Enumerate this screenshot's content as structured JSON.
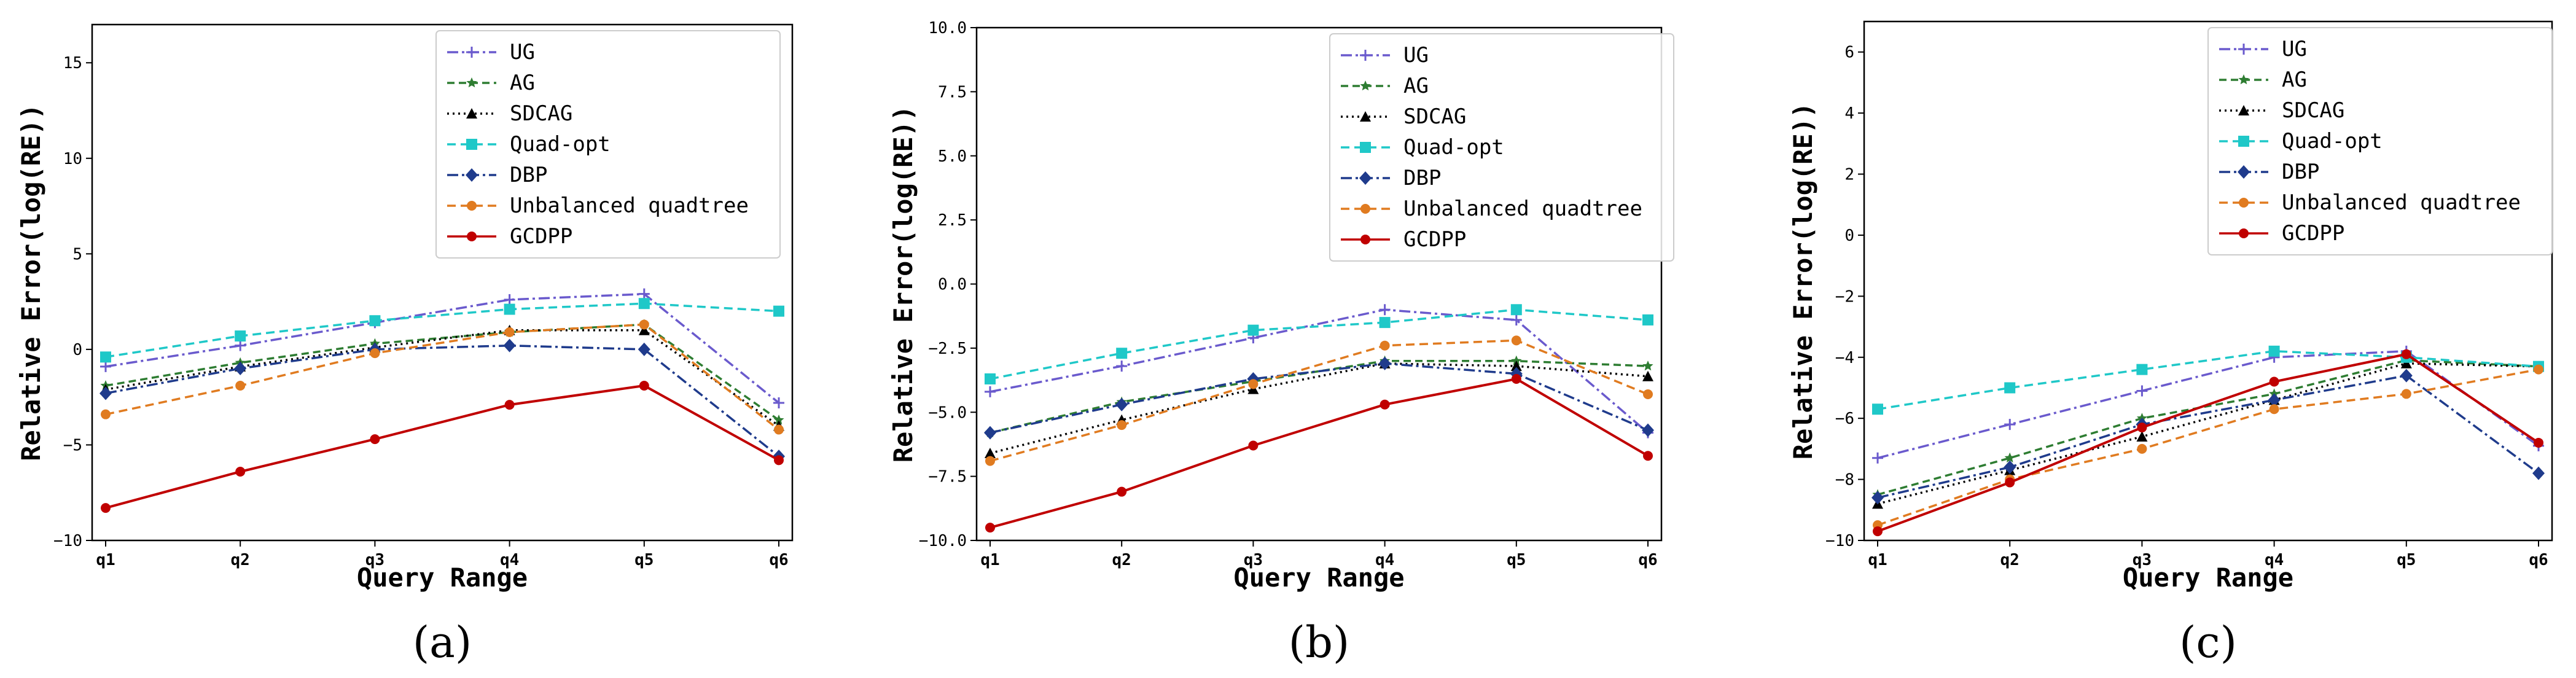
{
  "chart_data": [
    {
      "type": "line",
      "panel_label": "(a)",
      "xlabel": "Query Range",
      "ylabel": "Relative Error(log(RE))",
      "categories": [
        "q1",
        "q2",
        "q3",
        "q4",
        "q5",
        "q6"
      ],
      "ylim": [
        -10,
        17
      ],
      "yticks": [
        -10,
        -5,
        0,
        5,
        10,
        15
      ],
      "ytick_labels": [
        "−10",
        "−5",
        "0",
        "5",
        "10",
        "15"
      ],
      "grid": false,
      "legend": "top-right",
      "series": [
        {
          "name": "UG",
          "values": [
            -0.9,
            0.2,
            1.4,
            2.6,
            2.9,
            -2.8
          ]
        },
        {
          "name": "AG",
          "values": [
            -1.9,
            -0.7,
            0.3,
            0.9,
            1.3,
            -3.7
          ]
        },
        {
          "name": "SDCAG",
          "values": [
            -2.1,
            -0.9,
            0.1,
            1.0,
            1.0,
            -4.0
          ]
        },
        {
          "name": "Quad-opt",
          "values": [
            -0.4,
            0.7,
            1.5,
            2.1,
            2.4,
            2.0
          ]
        },
        {
          "name": "DBP",
          "values": [
            -2.3,
            -1.0,
            0.0,
            0.2,
            0.0,
            -5.6
          ]
        },
        {
          "name": "Unbalanced quadtree",
          "values": [
            -3.4,
            -1.9,
            -0.2,
            0.9,
            1.3,
            -4.2
          ]
        },
        {
          "name": "GCDPP",
          "values": [
            -8.3,
            -6.4,
            -4.7,
            -2.9,
            -1.9,
            -5.8
          ]
        }
      ]
    },
    {
      "type": "line",
      "panel_label": "(b)",
      "xlabel": "Query Range",
      "ylabel": "Relative Error(log(RE))",
      "categories": [
        "q1",
        "q2",
        "q3",
        "q4",
        "q5",
        "q6"
      ],
      "ylim": [
        -10,
        10
      ],
      "yticks": [
        -10,
        -7.5,
        -5,
        -2.5,
        0,
        2.5,
        5,
        7.5,
        10
      ],
      "ytick_labels": [
        "−10.0",
        "−7.5",
        "−5.0",
        "−2.5",
        "0.0",
        "2.5",
        "5.0",
        "7.5",
        "10.0"
      ],
      "grid": false,
      "legend": "top-right",
      "series": [
        {
          "name": "UG",
          "values": [
            -4.2,
            -3.2,
            -2.1,
            -1.0,
            -1.4,
            -5.8
          ]
        },
        {
          "name": "AG",
          "values": [
            -5.8,
            -4.6,
            -3.8,
            -3.0,
            -3.0,
            -3.2
          ]
        },
        {
          "name": "SDCAG",
          "values": [
            -6.6,
            -5.3,
            -4.1,
            -3.1,
            -3.2,
            -3.6
          ]
        },
        {
          "name": "Quad-opt",
          "values": [
            -3.7,
            -2.7,
            -1.8,
            -1.5,
            -1.0,
            -1.4
          ]
        },
        {
          "name": "DBP",
          "values": [
            -5.8,
            -4.7,
            -3.7,
            -3.1,
            -3.5,
            -5.7
          ]
        },
        {
          "name": "Unbalanced quadtree",
          "values": [
            -6.9,
            -5.5,
            -3.9,
            -2.4,
            -2.2,
            -4.3
          ]
        },
        {
          "name": "GCDPP",
          "values": [
            -9.5,
            -8.1,
            -6.3,
            -4.7,
            -3.7,
            -6.7
          ]
        }
      ]
    },
    {
      "type": "line",
      "panel_label": "(c)",
      "xlabel": "Query Range",
      "ylabel": "Relative Error(log(RE))",
      "categories": [
        "q1",
        "q2",
        "q3",
        "q4",
        "q5",
        "q6"
      ],
      "ylim": [
        -10,
        7
      ],
      "yticks": [
        -10,
        -8,
        -6,
        -4,
        -2,
        0,
        2,
        4,
        6
      ],
      "ytick_labels": [
        "−10",
        "−8",
        "−6",
        "−4",
        "−2",
        "0",
        "2",
        "4",
        "6"
      ],
      "grid": false,
      "legend": "top-right",
      "series": [
        {
          "name": "UG",
          "values": [
            -7.3,
            -6.2,
            -5.1,
            -4.0,
            -3.8,
            -6.9
          ]
        },
        {
          "name": "AG",
          "values": [
            -8.5,
            -7.3,
            -6.0,
            -5.2,
            -4.1,
            -4.3
          ]
        },
        {
          "name": "SDCAG",
          "values": [
            -8.8,
            -7.7,
            -6.6,
            -5.4,
            -4.2,
            -4.3
          ]
        },
        {
          "name": "Quad-opt",
          "values": [
            -5.7,
            -5.0,
            -4.4,
            -3.8,
            -4.0,
            -4.3
          ]
        },
        {
          "name": "DBP",
          "values": [
            -8.6,
            -7.6,
            -6.2,
            -5.4,
            -4.6,
            -7.8
          ]
        },
        {
          "name": "Unbalanced quadtree",
          "values": [
            -9.5,
            -8.0,
            -7.0,
            -5.7,
            -5.2,
            -4.4
          ]
        },
        {
          "name": "GCDPP",
          "values": [
            -9.7,
            -8.1,
            -6.3,
            -4.8,
            -3.9,
            -6.8
          ]
        }
      ]
    }
  ],
  "series_styles": [
    {
      "name": "UG",
      "color": "#6a5acd",
      "dash": "18,6,4,6",
      "marker": "plus"
    },
    {
      "name": "AG",
      "color": "#2e7d32",
      "dash": "12,7",
      "marker": "star"
    },
    {
      "name": "SDCAG",
      "color": "#000000",
      "dash": "3,6",
      "marker": "triangle"
    },
    {
      "name": "Quad-opt",
      "color": "#1fc8c8",
      "dash": "14,8",
      "marker": "square"
    },
    {
      "name": "DBP",
      "color": "#1f3b8c",
      "dash": "18,6,4,6",
      "marker": "diamond"
    },
    {
      "name": "Unbalanced quadtree",
      "color": "#e07b20",
      "dash": "14,8",
      "marker": "circle"
    },
    {
      "name": "GCDPP",
      "color": "#c00000",
      "dash": "",
      "marker": "circle"
    }
  ]
}
